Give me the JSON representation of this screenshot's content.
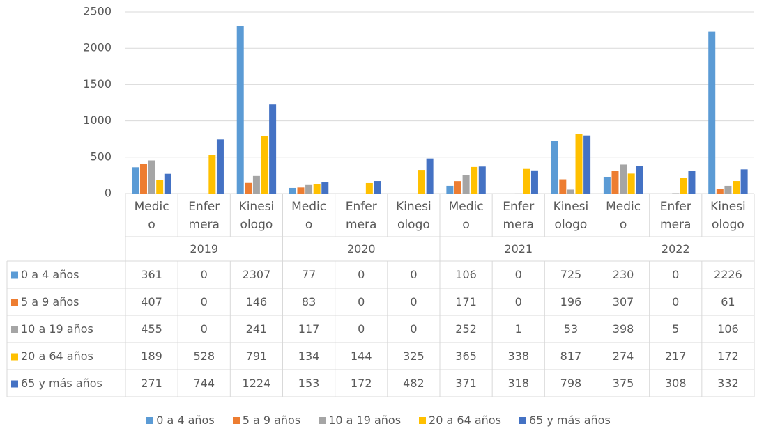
{
  "chart_data": {
    "type": "bar",
    "categories": [
      "Medico",
      "Enfermera",
      "Kinesiologo",
      "Medico",
      "Enfermera",
      "Kinesiologo",
      "Medico",
      "Enfermera",
      "Kinesiologo",
      "Medico",
      "Enfermera",
      "Kinesiologo"
    ],
    "groups": [
      "2019",
      "2020",
      "2021",
      "2022"
    ],
    "series": [
      {
        "name": "0 a 4 años",
        "color": "#5b9bd5",
        "values": [
          361,
          0,
          2307,
          77,
          0,
          0,
          106,
          0,
          725,
          230,
          0,
          2226
        ]
      },
      {
        "name": "5 a 9 años",
        "color": "#ed7d31",
        "values": [
          407,
          0,
          146,
          83,
          0,
          0,
          171,
          0,
          196,
          307,
          0,
          61
        ]
      },
      {
        "name": "10 a 19 años",
        "color": "#a5a5a5",
        "values": [
          455,
          0,
          241,
          117,
          0,
          0,
          252,
          1,
          53,
          398,
          5,
          106
        ]
      },
      {
        "name": "20 a 64 años",
        "color": "#ffc000",
        "values": [
          189,
          528,
          791,
          134,
          144,
          325,
          365,
          338,
          817,
          274,
          217,
          172
        ]
      },
      {
        "name": "65 y más años",
        "color": "#4472c4",
        "values": [
          271,
          744,
          1224,
          153,
          172,
          482,
          371,
          318,
          798,
          375,
          308,
          332
        ]
      }
    ],
    "ylim": [
      0,
      2500
    ],
    "yticks": [
      0,
      500,
      1000,
      1500,
      2000,
      2500
    ],
    "grid": true,
    "legend": "bottom"
  }
}
